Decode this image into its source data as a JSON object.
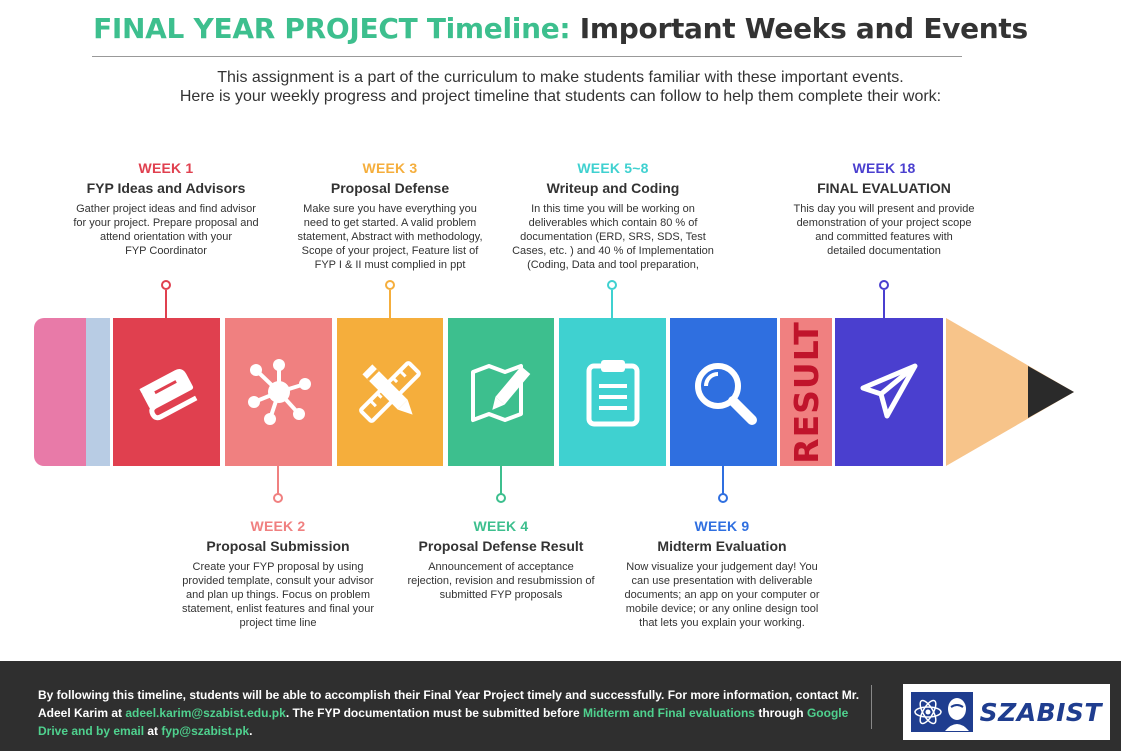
{
  "header": {
    "title_accent": "FINAL YEAR PROJECT Timeline:",
    "title_rest": " Important Weeks and Events",
    "intro_line1": "This assignment is a part of the curriculum to make students familiar with these important events.",
    "intro_line2": "Here is your weekly progress and project timeline that students can follow to help them complete their work:"
  },
  "colors": {
    "accent_green": "#3dbf8e",
    "week1": "#e0404f",
    "week2": "#f08080",
    "week3": "#f5ae3c",
    "week4": "#3dbf8e",
    "week5": "#3fd1d0",
    "week9": "#2f6fe0",
    "result": "#f08080",
    "week18": "#4a3fcf"
  },
  "events": {
    "e1": {
      "week": "WEEK 1",
      "name": "FYP Ideas and Advisors",
      "lines": [
        "Gather project ideas and find advisor",
        "for your project. Prepare proposal and",
        "attend orientation with your",
        "FYP Coordinator"
      ],
      "icon": "book-icon"
    },
    "e2": {
      "week": "WEEK 2",
      "name": "Proposal Submission",
      "lines": [
        "Create your FYP proposal by using",
        "provided template, consult your advisor",
        "and plan up things. Focus on problem",
        "statement, enlist features and final your",
        "project time line"
      ],
      "icon": "network-icon"
    },
    "e3": {
      "week": "WEEK 3",
      "name": "Proposal Defense",
      "lines": [
        "Make sure you have everything you",
        "need to get started. A valid problem",
        "statement, Abstract with methodology,",
        "Scope of your project, Feature list of",
        "FYP I & II must complied in ppt"
      ],
      "icon": "ruler-pencil-icon"
    },
    "e4": {
      "week": "WEEK 4",
      "name": "Proposal Defense Result",
      "lines": [
        "Announcement of acceptance",
        "rejection, revision and resubmission of",
        "submitted FYP proposals"
      ],
      "icon": "map-pencil-icon"
    },
    "e5": {
      "week": "WEEK 5~8",
      "name": "Writeup and Coding",
      "lines": [
        "In this time you will be working on",
        "deliverables which contain 80 % of",
        "documentation (ERD, SRS, SDS, Test",
        "Cases, etc. ) and 40 % of Implementation",
        "(Coding, Data and tool preparation,"
      ],
      "icon": "clipboard-icon"
    },
    "e9": {
      "week": "WEEK 9",
      "name": "Midterm Evaluation",
      "lines": [
        "Now visualize your judgement day! You",
        "can use presentation with  deliverable",
        "documents; an app on your computer or",
        "mobile device; or any online design tool",
        "that lets you explain your working."
      ],
      "icon": "magnifier-icon"
    },
    "e18": {
      "week": "WEEK 18",
      "name": "FINAL EVALUATION",
      "lines": [
        "This day you will present and provide",
        "demonstration of your project scope",
        "and committed features with",
        "detailed documentation"
      ],
      "icon": "paper-plane-icon"
    }
  },
  "pencil": {
    "result_label": "RESULT"
  },
  "footer": {
    "t1": "By following this timeline, students will be able to accomplish their Final Year Project timely and successfully. For more information, contact Mr. Adeel Karim at ",
    "email1": "adeel.karim@szabist.edu.pk",
    "t2": ". The FYP documentation must be submitted before ",
    "hl1": "Midterm and Final evaluations",
    "t3": " through ",
    "hl2": "Google Drive and by email",
    "t4": " at ",
    "email2": "fyp@szabist.pk",
    "t5": ".",
    "logo_text": "SZABIST"
  }
}
